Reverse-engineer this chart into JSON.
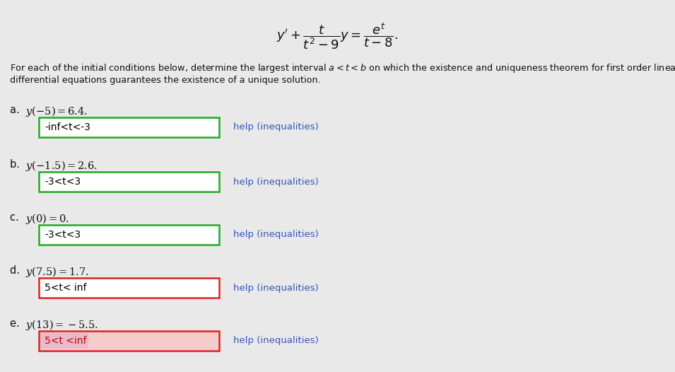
{
  "bg_color": "#e9e9e9",
  "parts": [
    {
      "label": "a. ",
      "condition": "y(−5) = 6.4.",
      "answer": "-inf<t<-3",
      "box_border_color": "#22aa22",
      "answer_text_color": "#000000",
      "answer_bg": "#ffffff"
    },
    {
      "label": "b. ",
      "condition": "y(−1.5) = 2.6.",
      "answer": "-3<t<3",
      "box_border_color": "#22aa22",
      "answer_text_color": "#000000",
      "answer_bg": "#ffffff"
    },
    {
      "label": "c. ",
      "condition": "y(0) = 0.",
      "answer": "-3<t<3",
      "box_border_color": "#22aa22",
      "answer_text_color": "#000000",
      "answer_bg": "#ffffff"
    },
    {
      "label": "d. ",
      "condition": "y(7.5) = 1.7.",
      "answer": "5<t< inf",
      "box_border_color": "#dd2222",
      "answer_text_color": "#000000",
      "answer_bg": "#ffffff"
    },
    {
      "label": "e. ",
      "condition": "y(13) = −5.5.",
      "answer": "5<t <inf",
      "box_border_color": "#dd2222",
      "answer_text_color": "#cc0000",
      "answer_bg": "#f5cccc"
    }
  ],
  "help_text": "help (inequalities)",
  "help_color": "#3355bb"
}
